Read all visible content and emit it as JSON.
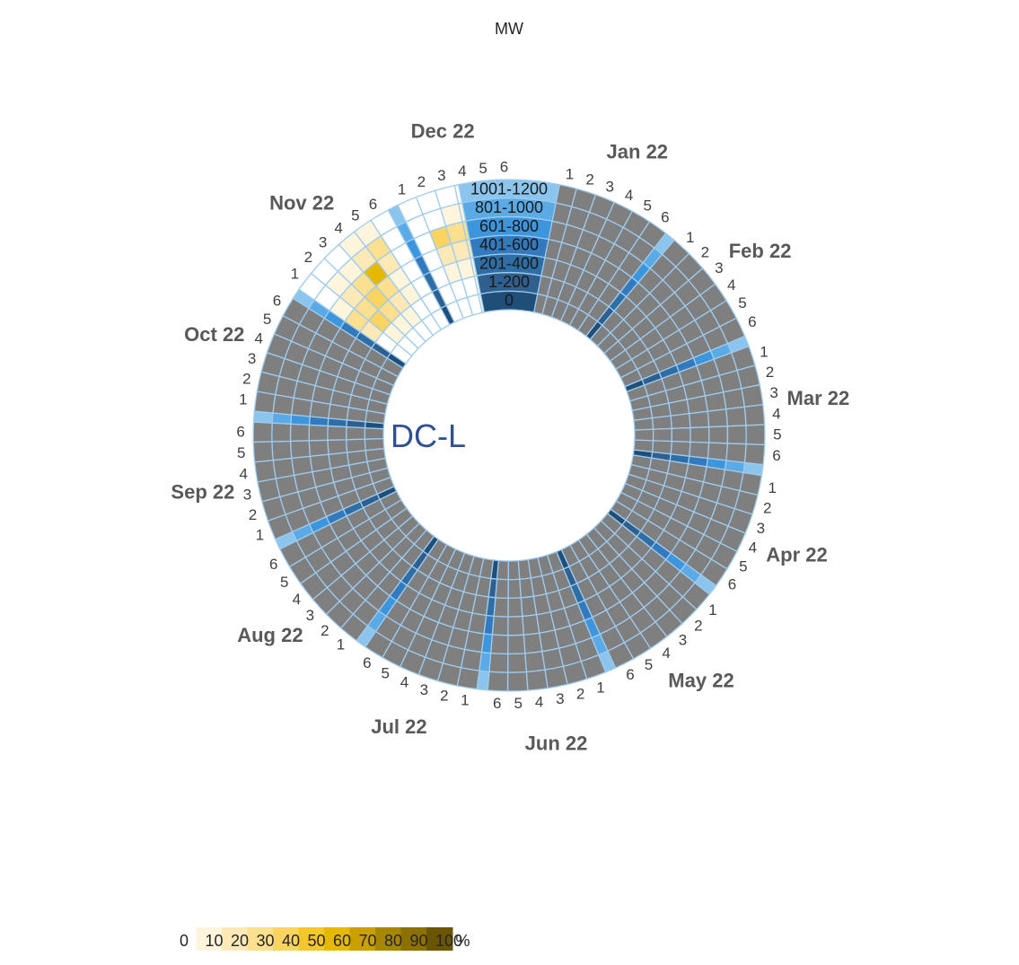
{
  "chart_data": {
    "type": "heatmap",
    "layout": "radial",
    "center_title": "DC-L",
    "band_unit": "MW",
    "bands": [
      "0",
      "1-200",
      "201-400",
      "401-600",
      "601-800",
      "801-1000",
      "1001-1200"
    ],
    "band_colors": [
      "#1f4e79",
      "#2e5f8e",
      "#2f6ea4",
      "#3279bd",
      "#3d95db",
      "#5aaae6",
      "#8bc4ec"
    ],
    "months": [
      "Jan 22",
      "Feb 22",
      "Mar 22",
      "Apr 22",
      "May 22",
      "Jun 22",
      "Jul 22",
      "Aug 22",
      "Sep 22",
      "Oct 22",
      "Nov 22",
      "Dec 22"
    ],
    "rows": [
      "1",
      "2",
      "3",
      "4",
      "5",
      "6"
    ],
    "no_data_color": "#7f7f7f",
    "no_data_months": [
      "Jan 22",
      "Feb 22",
      "Mar 22",
      "Apr 22",
      "May 22",
      "Jun 22",
      "Jul 22",
      "Aug 22",
      "Sep 22",
      "Oct 22"
    ],
    "values": {
      "Nov 22": [
        [
          0,
          0,
          20,
          30,
          10,
          0,
          0
        ],
        [
          0,
          10,
          40,
          30,
          20,
          10,
          0
        ],
        [
          0,
          10,
          30,
          40,
          30,
          10,
          0
        ],
        [
          0,
          10,
          20,
          30,
          60,
          20,
          10
        ],
        [
          0,
          0,
          10,
          10,
          20,
          30,
          10
        ],
        [
          0,
          0,
          0,
          0,
          0,
          0,
          0
        ]
      ],
      "Dec 22": [
        [
          0,
          0,
          0,
          0,
          0,
          0,
          0
        ],
        [
          0,
          0,
          10,
          20,
          40,
          0,
          0
        ],
        [
          0,
          0,
          10,
          20,
          30,
          10,
          0
        ],
        [
          0,
          0,
          10,
          20,
          30,
          10,
          0
        ],
        [
          0,
          10,
          70,
          20,
          40,
          20,
          0
        ],
        [
          0,
          0,
          10,
          10,
          20,
          30,
          10
        ]
      ]
    },
    "legend": {
      "ticks": [
        "0",
        "10",
        "20",
        "30",
        "40",
        "50",
        "60",
        "70",
        "80",
        "90",
        "100"
      ],
      "unit": "%",
      "colors": [
        "#ffffff",
        "#fef5dc",
        "#fde9b8",
        "#fce08f",
        "#fad460",
        "#f2c72d",
        "#e6b800",
        "#c9a000",
        "#a88700",
        "#8c7000",
        "#6b5500"
      ]
    }
  }
}
